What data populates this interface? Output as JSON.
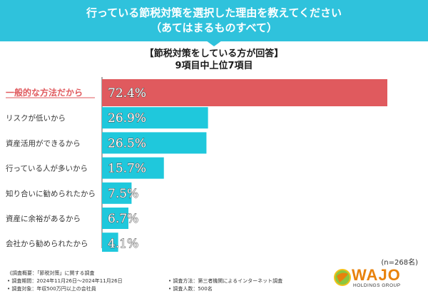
{
  "header": {
    "title_line1": "行っている節税対策を選択した理由を教えてください",
    "title_line2": "（あてはまるものすべて）"
  },
  "subtitle": {
    "line1": "【節税対策をしている方が回答】",
    "line2": "9項目中上位7項目"
  },
  "chart_data": {
    "type": "bar",
    "orientation": "horizontal",
    "categories": [
      "一般的な方法だから",
      "リスクが低いから",
      "資産活用ができるから",
      "行っている人が多いから",
      "知り合いに勧められたから",
      "資産に余裕があるから",
      "会社から勧められたから"
    ],
    "values": [
      72.4,
      26.9,
      26.5,
      15.7,
      7.5,
      6.7,
      4.1
    ],
    "value_labels": [
      "72.4%",
      "26.9%",
      "26.5%",
      "15.7%",
      "7.5%",
      "6.7%",
      "4.1%"
    ],
    "highlight_index": 0,
    "xlim": [
      0,
      72.4
    ],
    "grid": false,
    "colors": {
      "highlight": "#e05a5e",
      "bar": "#1fc8dc",
      "highlight_label": "#e05a5e"
    }
  },
  "sample_size": "(n=268名)",
  "footnotes": {
    "overview": "《調査概要：「節税対策」に関する調査",
    "period": "• 調査期間：2024年11月26日〜2024年11月26日",
    "target": "• 調査対象：年収500万円以上の会社員",
    "method": "• 調査方法：第三者機関によるインターネット調査",
    "count": "• 調査人数：500名"
  },
  "logo": {
    "name": "WAJO",
    "sub": "HOLDINGS GROUP",
    "icon": "wajo-globe-icon"
  }
}
